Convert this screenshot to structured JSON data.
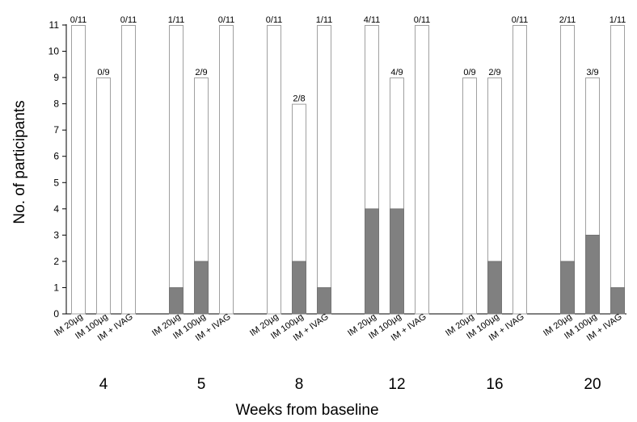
{
  "chart_data": {
    "type": "bar",
    "ylabel": "No. of participants",
    "xlabel": "Weeks from baseline",
    "ylim": [
      0,
      11
    ],
    "yticks": [
      "0",
      "1",
      "2",
      "3",
      "4",
      "5",
      "6",
      "7",
      "8",
      "9",
      "10",
      "11"
    ],
    "colors": {
      "positive": "#808080",
      "outline": "#a0a0a0",
      "axis": "#000000"
    },
    "groups": [
      {
        "week": "4",
        "bars": [
          {
            "category": "IM 20µg",
            "total": 11,
            "positive": 0,
            "label": "0/11"
          },
          {
            "category": "IM 100µg",
            "total": 9,
            "positive": 0,
            "label": "0/9"
          },
          {
            "category": "IM + IVAG",
            "total": 11,
            "positive": 0,
            "label": "0/11"
          }
        ]
      },
      {
        "week": "5",
        "bars": [
          {
            "category": "IM 20µg",
            "total": 11,
            "positive": 1,
            "label": "1/11"
          },
          {
            "category": "IM 100µg",
            "total": 9,
            "positive": 2,
            "label": "2/9"
          },
          {
            "category": "IM + IVAG",
            "total": 11,
            "positive": 0,
            "label": "0/11"
          }
        ]
      },
      {
        "week": "8",
        "bars": [
          {
            "category": "IM 20µg",
            "total": 11,
            "positive": 0,
            "label": "0/11"
          },
          {
            "category": "IM 100µg",
            "total": 8,
            "positive": 2,
            "label": "2/8"
          },
          {
            "category": "IM + IVAG",
            "total": 11,
            "positive": 1,
            "label": "1/11"
          }
        ]
      },
      {
        "week": "12",
        "bars": [
          {
            "category": "IM 20µg",
            "total": 11,
            "positive": 4,
            "label": "4/11"
          },
          {
            "category": "IM 100µg",
            "total": 9,
            "positive": 4,
            "label": "4/9"
          },
          {
            "category": "IM + IVAG",
            "total": 11,
            "positive": 0,
            "label": "0/11"
          }
        ]
      },
      {
        "week": "16",
        "bars": [
          {
            "category": "IM 20µg",
            "total": 9,
            "positive": 0,
            "label": "0/9"
          },
          {
            "category": "IM 100µg",
            "total": 9,
            "positive": 2,
            "label": "2/9"
          },
          {
            "category": "IM + IVAG",
            "total": 11,
            "positive": 0,
            "label": "0/11"
          }
        ]
      },
      {
        "week": "20",
        "bars": [
          {
            "category": "IM 20µg",
            "total": 11,
            "positive": 2,
            "label": "2/11"
          },
          {
            "category": "IM 100µg",
            "total": 9,
            "positive": 3,
            "label": "3/9"
          },
          {
            "category": "IM + IVAG",
            "total": 11,
            "positive": 1,
            "label": "1/11"
          }
        ]
      }
    ]
  }
}
